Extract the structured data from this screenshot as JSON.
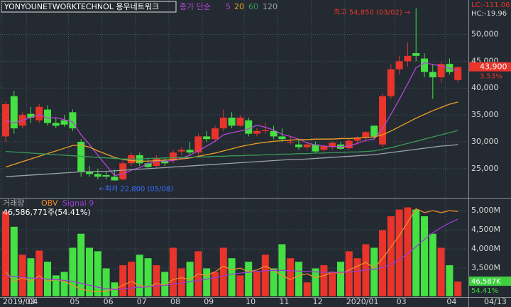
{
  "header": {
    "symbol": "YONYOUNETWORKTECHNOL 용우네트워크",
    "ma_label": "종가 단순",
    "lc": "LC:-111.06",
    "hc": "HC:-19.96",
    "date": "04/13"
  },
  "chart_data": [
    {
      "type": "candlestick",
      "categories": [
        "2019/03",
        null,
        null,
        "04",
        null,
        null,
        null,
        null,
        "05",
        null,
        null,
        null,
        "06",
        null,
        null,
        null,
        "07",
        null,
        null,
        null,
        "08",
        null,
        null,
        null,
        "09",
        null,
        null,
        null,
        null,
        "10",
        null,
        null,
        null,
        "11",
        null,
        null,
        null,
        "12",
        null,
        null,
        null,
        "2020/01",
        null,
        null,
        null,
        null,
        null,
        "03",
        null,
        null,
        null,
        null,
        null,
        "04",
        null
      ],
      "open": [
        31000,
        38500,
        33000,
        35200,
        34000,
        36000,
        33500,
        34000,
        35500,
        30000,
        24500,
        24000,
        23800,
        23500,
        23000,
        26000,
        27500,
        26000,
        25500,
        26500,
        26500,
        28200,
        28500,
        28000,
        31000,
        30500,
        32500,
        34500,
        33000,
        34000,
        31500,
        32000,
        32000,
        31000,
        30000,
        29500,
        29000,
        29500,
        28500,
        29000,
        29500,
        28800,
        30200,
        30800,
        33000,
        29500,
        38500,
        43500,
        45000,
        46500,
        45500,
        43000,
        42000,
        44500,
        41500
      ],
      "high": [
        37500,
        39500,
        35500,
        36500,
        37000,
        36800,
        34500,
        35000,
        36000,
        30500,
        25500,
        25000,
        24500,
        24800,
        26500,
        28000,
        28000,
        26800,
        27500,
        27000,
        28500,
        29000,
        30000,
        31500,
        32000,
        33000,
        36000,
        35500,
        35000,
        34500,
        32500,
        33500,
        33000,
        32500,
        31000,
        30500,
        30000,
        30000,
        29500,
        30000,
        30000,
        30500,
        31000,
        32000,
        33000,
        39000,
        44500,
        46000,
        48500,
        54850,
        46500,
        44500,
        45000,
        45500,
        44000
      ],
      "low": [
        30000,
        31500,
        32500,
        33500,
        33500,
        33000,
        32500,
        32800,
        32000,
        23500,
        23500,
        23000,
        23000,
        22800,
        22800,
        25500,
        25500,
        25000,
        25200,
        25500,
        26000,
        27500,
        27500,
        27000,
        30000,
        30000,
        32000,
        32500,
        32800,
        31000,
        31000,
        31500,
        30500,
        30000,
        29500,
        28500,
        28500,
        28000,
        28000,
        28500,
        28500,
        28500,
        29500,
        30000,
        30500,
        29000,
        38000,
        42500,
        44000,
        45000,
        42000,
        38000,
        41000,
        42500,
        41000
      ],
      "close": [
        37000,
        32500,
        35000,
        34500,
        36500,
        33500,
        33000,
        33200,
        32500,
        24500,
        24000,
        23500,
        23500,
        22800,
        26000,
        27500,
        26000,
        25300,
        27000,
        26000,
        28000,
        28500,
        28000,
        31000,
        30500,
        32500,
        34500,
        33000,
        34500,
        31500,
        32000,
        32200,
        31000,
        30500,
        30000,
        29000,
        29500,
        28200,
        29200,
        29800,
        28700,
        30200,
        30800,
        31800,
        31000,
        38500,
        43500,
        45000,
        46000,
        46000,
        43000,
        42000,
        44500,
        43000,
        43900
      ],
      "up_color": "#e8342b",
      "down_color": "#44e044",
      "ylim": [
        19700,
        56400
      ],
      "yticks": [
        {
          "value": 25000,
          "label": "25,000"
        },
        {
          "value": 30000,
          "label": "30,000"
        },
        {
          "value": 35000,
          "label": "35,000"
        },
        {
          "value": 40000,
          "label": "40,000"
        },
        {
          "value": 45000,
          "label": "45,000"
        },
        {
          "value": 50000,
          "label": "50,000"
        }
      ],
      "grid": true,
      "series": [
        {
          "name": "5",
          "color": "#b446d6",
          "values": [
            34000,
            33500,
            34000,
            34500,
            35100,
            34400,
            34500,
            34100,
            33700,
            31300,
            29500,
            27500,
            25600,
            23700,
            24000,
            24700,
            25200,
            25900,
            26400,
            26400,
            26500,
            27000,
            27500,
            28300,
            29200,
            30100,
            31300,
            31700,
            32000,
            32400,
            33100,
            32700,
            32200,
            31400,
            31000,
            30500,
            29800,
            29400,
            29200,
            29100,
            29100,
            29200,
            29700,
            30300,
            30500,
            32500,
            35100,
            37900,
            40800,
            43800,
            44700,
            44400,
            44100,
            43700,
            43300
          ]
        },
        {
          "name": "20",
          "color": "#f0a028",
          "values": [
            25300,
            25800,
            26300,
            26800,
            27300,
            27800,
            28300,
            28800,
            29300,
            29400,
            29000,
            28300,
            27700,
            27100,
            26700,
            26500,
            26400,
            26400,
            26500,
            26600,
            26700,
            26800,
            27000,
            27300,
            27600,
            27900,
            28300,
            28700,
            29100,
            29400,
            29700,
            29900,
            30100,
            30200,
            30300,
            30400,
            30400,
            30500,
            30500,
            30500,
            30600,
            30600,
            30700,
            30800,
            30900,
            31300,
            32000,
            32800,
            33600,
            34400,
            35100,
            35800,
            36400,
            37000,
            37400
          ]
        },
        {
          "name": "60",
          "color": "#3a9a5a",
          "values": [
            28200,
            28100,
            28000,
            27900,
            27800,
            27700,
            27600,
            27500,
            27400,
            27300,
            27200,
            27100,
            27000,
            26900,
            26800,
            26800,
            26800,
            26900,
            26900,
            27000,
            27000,
            27100,
            27100,
            27200,
            27200,
            27300,
            27300,
            27400,
            27400,
            27500,
            27500,
            27600,
            27600,
            27700,
            27700,
            27800,
            27800,
            27900,
            27900,
            28000,
            28000,
            28100,
            28100,
            28200,
            28300,
            28600,
            28900,
            29300,
            29700,
            30100,
            30500,
            30900,
            31300,
            31700,
            32100
          ]
        },
        {
          "name": "120",
          "color": "#9aa3a8",
          "values": [
            23500,
            23600,
            23700,
            23800,
            23900,
            24000,
            24100,
            24200,
            24300,
            24400,
            24400,
            24500,
            24500,
            24600,
            24700,
            24800,
            24900,
            25000,
            25100,
            25200,
            25300,
            25400,
            25500,
            25600,
            25700,
            25800,
            25900,
            26000,
            26100,
            26200,
            26300,
            26400,
            26500,
            26600,
            26700,
            26700,
            26800,
            26900,
            27000,
            27100,
            27200,
            27300,
            27400,
            27500,
            27600,
            27800,
            28000,
            28200,
            28400,
            28600,
            28800,
            29000,
            29200,
            29300,
            29500
          ]
        }
      ],
      "high_annotation": "최고 54,850 (03/02) →",
      "low_annotation": "←최저 22,800 (05/08)",
      "last_value": 43900,
      "last_label": "43,900",
      "change": "3.53%"
    },
    {
      "type": "bar",
      "series": [
        {
          "name": "거래량",
          "axis": "y2",
          "values": [
            267000000,
            219000000,
            131000000,
            120000000,
            144000000,
            109000000,
            66000000,
            77000000,
            153000000,
            197000000,
            153000000,
            142000000,
            88000000,
            44000000,
            98000000,
            109000000,
            131000000,
            120000000,
            98000000,
            77000000,
            153000000,
            88000000,
            109000000,
            142000000,
            88000000,
            77000000,
            153000000,
            120000000,
            66000000,
            109000000,
            77000000,
            131000000,
            88000000,
            164000000,
            120000000,
            109000000,
            44000000,
            88000000,
            98000000,
            77000000,
            109000000,
            142000000,
            120000000,
            164000000,
            153000000,
            208000000,
            252000000,
            273000000,
            280000000,
            273000000,
            252000000,
            197000000,
            153000000,
            98000000,
            46586771
          ]
        },
        {
          "name": "OBV",
          "color": "#f08c28",
          "values": [
            3400,
            3150,
            3250,
            3150,
            3300,
            3150,
            3200,
            3150,
            3050,
            2950,
            2900,
            2880,
            2900,
            2950,
            3050,
            3150,
            3050,
            3000,
            3100,
            3050,
            3200,
            3250,
            3200,
            3350,
            3300,
            3400,
            3550,
            3450,
            3500,
            3400,
            3450,
            3550,
            3450,
            3300,
            3200,
            3300,
            3350,
            3250,
            3300,
            3400,
            3350,
            3450,
            3550,
            3650,
            3500,
            3750,
            4050,
            4350,
            4700,
            5050,
            4950,
            5000,
            4950,
            5000,
            4980
          ]
        },
        {
          "name": "Signal 9",
          "color": "#9b3ccf",
          "values": [
            3300,
            3280,
            3260,
            3240,
            3230,
            3210,
            3200,
            3180,
            3150,
            3100,
            3050,
            3000,
            2960,
            2940,
            2950,
            2980,
            3000,
            3010,
            3030,
            3050,
            3080,
            3110,
            3140,
            3180,
            3210,
            3250,
            3300,
            3340,
            3370,
            3390,
            3410,
            3430,
            3440,
            3440,
            3430,
            3420,
            3410,
            3400,
            3390,
            3390,
            3390,
            3400,
            3420,
            3450,
            3470,
            3520,
            3600,
            3720,
            3880,
            4060,
            4250,
            4420,
            4560,
            4680,
            4780
          ]
        }
      ],
      "volume_label": "46,586,771주(54.41%)",
      "y2lim": [
        0,
        290000000
      ],
      "ylim": [
        2760,
        5170
      ],
      "yticks": [
        {
          "value": 3500,
          "label": "3,500M"
        },
        {
          "value": 4000,
          "label": "4,000M"
        },
        {
          "value": 4500,
          "label": "4,500M"
        },
        {
          "value": 5000,
          "label": "5,000M"
        }
      ],
      "last_tag": "46,587K",
      "last_pct": "54.41%",
      "tag_color": "#3fd03f"
    }
  ]
}
